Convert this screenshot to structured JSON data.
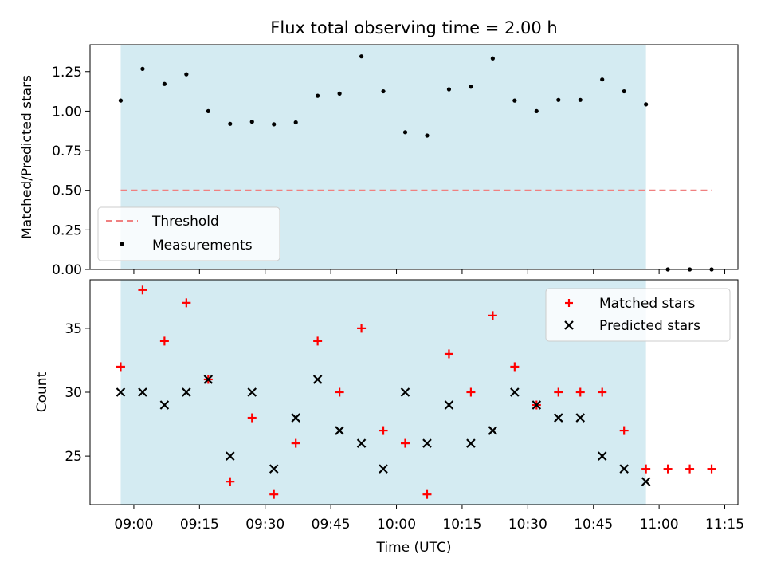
{
  "chart_data": [
    {
      "type": "scatter",
      "title": "Flux total observing time = 2.00 h",
      "xlabel": "",
      "ylabel": "Matched/Predicted stars",
      "ylim": [
        0,
        1.42
      ],
      "yticks": [
        "0.00",
        "0.25",
        "0.50",
        "0.75",
        "1.00",
        "1.25"
      ],
      "yticks_values": [
        0,
        0.25,
        0.5,
        0.75,
        1.0,
        1.25
      ],
      "threshold": {
        "name": "Threshold",
        "value": 0.5,
        "x_start": "08:57",
        "x_end": "11:12",
        "color": "#f08080"
      },
      "observing_window": {
        "start": "08:57",
        "end": "10:57",
        "color": "#add8e6"
      },
      "legend": {
        "placement": "lower-left",
        "entries": [
          "Threshold",
          "Measurements"
        ]
      },
      "series": [
        {
          "name": "Measurements",
          "x": [
            "08:57",
            "09:02",
            "09:07",
            "09:12",
            "09:17",
            "09:22",
            "09:27",
            "09:32",
            "09:37",
            "09:42",
            "09:47",
            "09:52",
            "09:57",
            "10:02",
            "10:07",
            "10:12",
            "10:17",
            "10:22",
            "10:27",
            "10:32",
            "10:37",
            "10:42",
            "10:47",
            "10:52",
            "10:57",
            "11:02",
            "11:07",
            "11:12"
          ],
          "values": [
            1.067,
            1.267,
            1.172,
            1.233,
            1.0,
            0.92,
            0.933,
            0.917,
            0.929,
            1.097,
            1.111,
            1.346,
            1.125,
            0.867,
            0.846,
            1.138,
            1.154,
            1.333,
            1.067,
            1.0,
            1.071,
            1.071,
            1.2,
            1.125,
            1.043,
            0,
            0,
            0
          ]
        }
      ]
    },
    {
      "type": "scatter",
      "title": "",
      "xlabel": "Time (UTC)",
      "ylabel": "Count",
      "ylim": [
        21.2,
        38.8
      ],
      "yticks": [
        "25",
        "30",
        "35"
      ],
      "yticks_values": [
        25,
        30,
        35
      ],
      "xticks": [
        "09:00",
        "09:15",
        "09:30",
        "09:45",
        "10:00",
        "10:15",
        "10:30",
        "10:45",
        "11:00",
        "11:15"
      ],
      "xlim": [
        "08:50",
        "11:18"
      ],
      "observing_window": {
        "start": "08:57",
        "end": "10:57",
        "color": "#add8e6"
      },
      "legend": {
        "placement": "top-right",
        "entries": [
          "Matched stars",
          "Predicted stars"
        ]
      },
      "series": [
        {
          "name": "Matched stars",
          "color": "#ff0000",
          "x": [
            "08:57",
            "09:02",
            "09:07",
            "09:12",
            "09:17",
            "09:22",
            "09:27",
            "09:32",
            "09:37",
            "09:42",
            "09:47",
            "09:52",
            "09:57",
            "10:02",
            "10:07",
            "10:12",
            "10:17",
            "10:22",
            "10:27",
            "10:32",
            "10:37",
            "10:42",
            "10:47",
            "10:52",
            "10:57",
            "11:02",
            "11:07",
            "11:12"
          ],
          "values": [
            32,
            38,
            34,
            37,
            31,
            23,
            28,
            22,
            26,
            34,
            30,
            35,
            27,
            26,
            22,
            33,
            30,
            36,
            32,
            29,
            30,
            30,
            30,
            27,
            24,
            24,
            24,
            24
          ]
        },
        {
          "name": "Predicted stars",
          "color": "#000000",
          "x": [
            "08:57",
            "09:02",
            "09:07",
            "09:12",
            "09:17",
            "09:22",
            "09:27",
            "09:32",
            "09:37",
            "09:42",
            "09:47",
            "09:52",
            "09:57",
            "10:02",
            "10:07",
            "10:12",
            "10:17",
            "10:22",
            "10:27",
            "10:32",
            "10:37",
            "10:42",
            "10:47",
            "10:52",
            "10:57"
          ],
          "values": [
            30,
            30,
            29,
            30,
            31,
            25,
            30,
            24,
            28,
            31,
            27,
            26,
            24,
            30,
            26,
            29,
            26,
            27,
            30,
            29,
            28,
            28,
            25,
            24,
            23
          ]
        }
      ]
    }
  ]
}
